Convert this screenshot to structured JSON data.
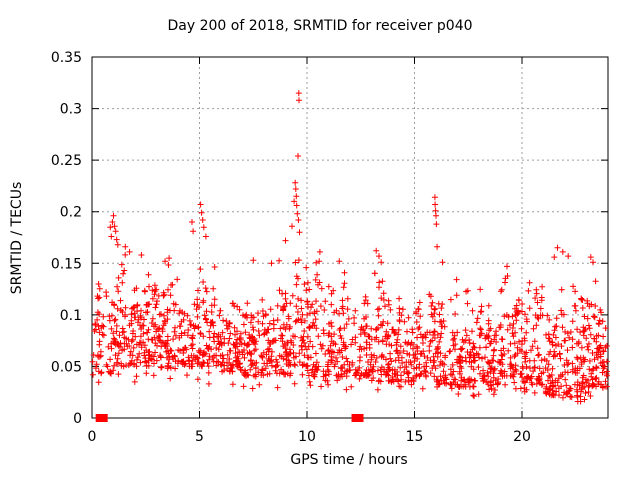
{
  "style": {
    "background": "#ffffff",
    "border_color": "#000000",
    "grid_color": "#9e9e9e",
    "text_color": "#000000",
    "marker_color": "#ff0000"
  },
  "chart_data": {
    "type": "scatter",
    "title": "Day 200 of 2018, SRMTID for receiver p040",
    "xlabel": "GPS time / hours",
    "ylabel": "SRMTID / TECUs",
    "xlim": [
      0,
      24
    ],
    "ylim": [
      0,
      0.35
    ],
    "xtick_values": [
      0,
      5,
      10,
      15,
      20
    ],
    "xtick_labels": [
      "0",
      "5",
      "10",
      "15",
      "20"
    ],
    "ytick_values": [
      0,
      0.05,
      0.1,
      0.15,
      0.2,
      0.25,
      0.3,
      0.35
    ],
    "ytick_labels": [
      "0",
      "0.05",
      "0.1",
      "0.15",
      "0.2",
      "0.25",
      "0.3",
      "0.35"
    ],
    "grid": true,
    "legend": "none",
    "marker": "plus",
    "marker_color": "#ff0000",
    "n_points_approx": 1900,
    "peak_points": [
      [
        0.85,
        0.185
      ],
      [
        0.9,
        0.176
      ],
      [
        0.95,
        0.19
      ],
      [
        1.0,
        0.196
      ],
      [
        1.05,
        0.186
      ],
      [
        1.1,
        0.181
      ],
      [
        1.15,
        0.173
      ],
      [
        1.2,
        0.168
      ],
      [
        1.55,
        0.166
      ],
      [
        1.75,
        0.161
      ],
      [
        2.3,
        0.158
      ],
      [
        3.4,
        0.152
      ],
      [
        4.65,
        0.19
      ],
      [
        4.7,
        0.181
      ],
      [
        5.05,
        0.207
      ],
      [
        5.1,
        0.199
      ],
      [
        5.15,
        0.192
      ],
      [
        5.2,
        0.185
      ],
      [
        5.3,
        0.176
      ],
      [
        7.5,
        0.153
      ],
      [
        8.35,
        0.15
      ],
      [
        9.0,
        0.172
      ],
      [
        9.3,
        0.186
      ],
      [
        9.4,
        0.21
      ],
      [
        9.45,
        0.228
      ],
      [
        9.48,
        0.222
      ],
      [
        9.5,
        0.215
      ],
      [
        9.52,
        0.206
      ],
      [
        9.55,
        0.198
      ],
      [
        9.58,
        0.254
      ],
      [
        9.6,
        0.192
      ],
      [
        9.62,
        0.315
      ],
      [
        9.63,
        0.308
      ],
      [
        9.65,
        0.18
      ],
      [
        10.6,
        0.161
      ],
      [
        11.5,
        0.152
      ],
      [
        13.35,
        0.157
      ],
      [
        13.45,
        0.151
      ],
      [
        15.95,
        0.214
      ],
      [
        15.96,
        0.207
      ],
      [
        15.98,
        0.201
      ],
      [
        16.0,
        0.196
      ],
      [
        16.02,
        0.188
      ],
      [
        16.05,
        0.166
      ],
      [
        16.3,
        0.151
      ],
      [
        19.3,
        0.147
      ],
      [
        21.5,
        0.156
      ],
      [
        21.65,
        0.165
      ],
      [
        21.9,
        0.161
      ],
      [
        22.15,
        0.157
      ],
      [
        23.2,
        0.156
      ],
      [
        23.3,
        0.151
      ]
    ],
    "hourly_envelope": {
      "description": "Per-hour scatter band read from plot: [hour, band_min_TECU, band_max_TECU, approx_point_count]",
      "bins": [
        [
          0,
          0.042,
          0.135,
          55
        ],
        [
          1,
          0.05,
          0.165,
          85
        ],
        [
          2,
          0.05,
          0.155,
          85
        ],
        [
          3,
          0.048,
          0.15,
          80
        ],
        [
          4,
          0.05,
          0.14,
          70
        ],
        [
          5,
          0.05,
          0.16,
          75
        ],
        [
          6,
          0.045,
          0.125,
          80
        ],
        [
          7,
          0.04,
          0.125,
          80
        ],
        [
          8,
          0.042,
          0.14,
          78
        ],
        [
          9,
          0.05,
          0.17,
          80
        ],
        [
          10,
          0.04,
          0.155,
          82
        ],
        [
          11,
          0.04,
          0.135,
          82
        ],
        [
          12,
          0.04,
          0.125,
          68
        ],
        [
          13,
          0.035,
          0.15,
          82
        ],
        [
          14,
          0.035,
          0.13,
          78
        ],
        [
          15,
          0.04,
          0.13,
          75
        ],
        [
          16,
          0.032,
          0.13,
          78
        ],
        [
          17,
          0.03,
          0.12,
          78
        ],
        [
          18,
          0.032,
          0.13,
          78
        ],
        [
          19,
          0.04,
          0.145,
          78
        ],
        [
          20,
          0.032,
          0.14,
          78
        ],
        [
          21,
          0.022,
          0.15,
          82
        ],
        [
          22,
          0.02,
          0.15,
          88
        ],
        [
          23,
          0.03,
          0.155,
          88
        ]
      ]
    },
    "axis_gap_markers": {
      "marker": "filled-square",
      "color": "#ff0000",
      "points": [
        [
          0.45,
          0
        ],
        [
          12.35,
          0
        ]
      ]
    }
  }
}
